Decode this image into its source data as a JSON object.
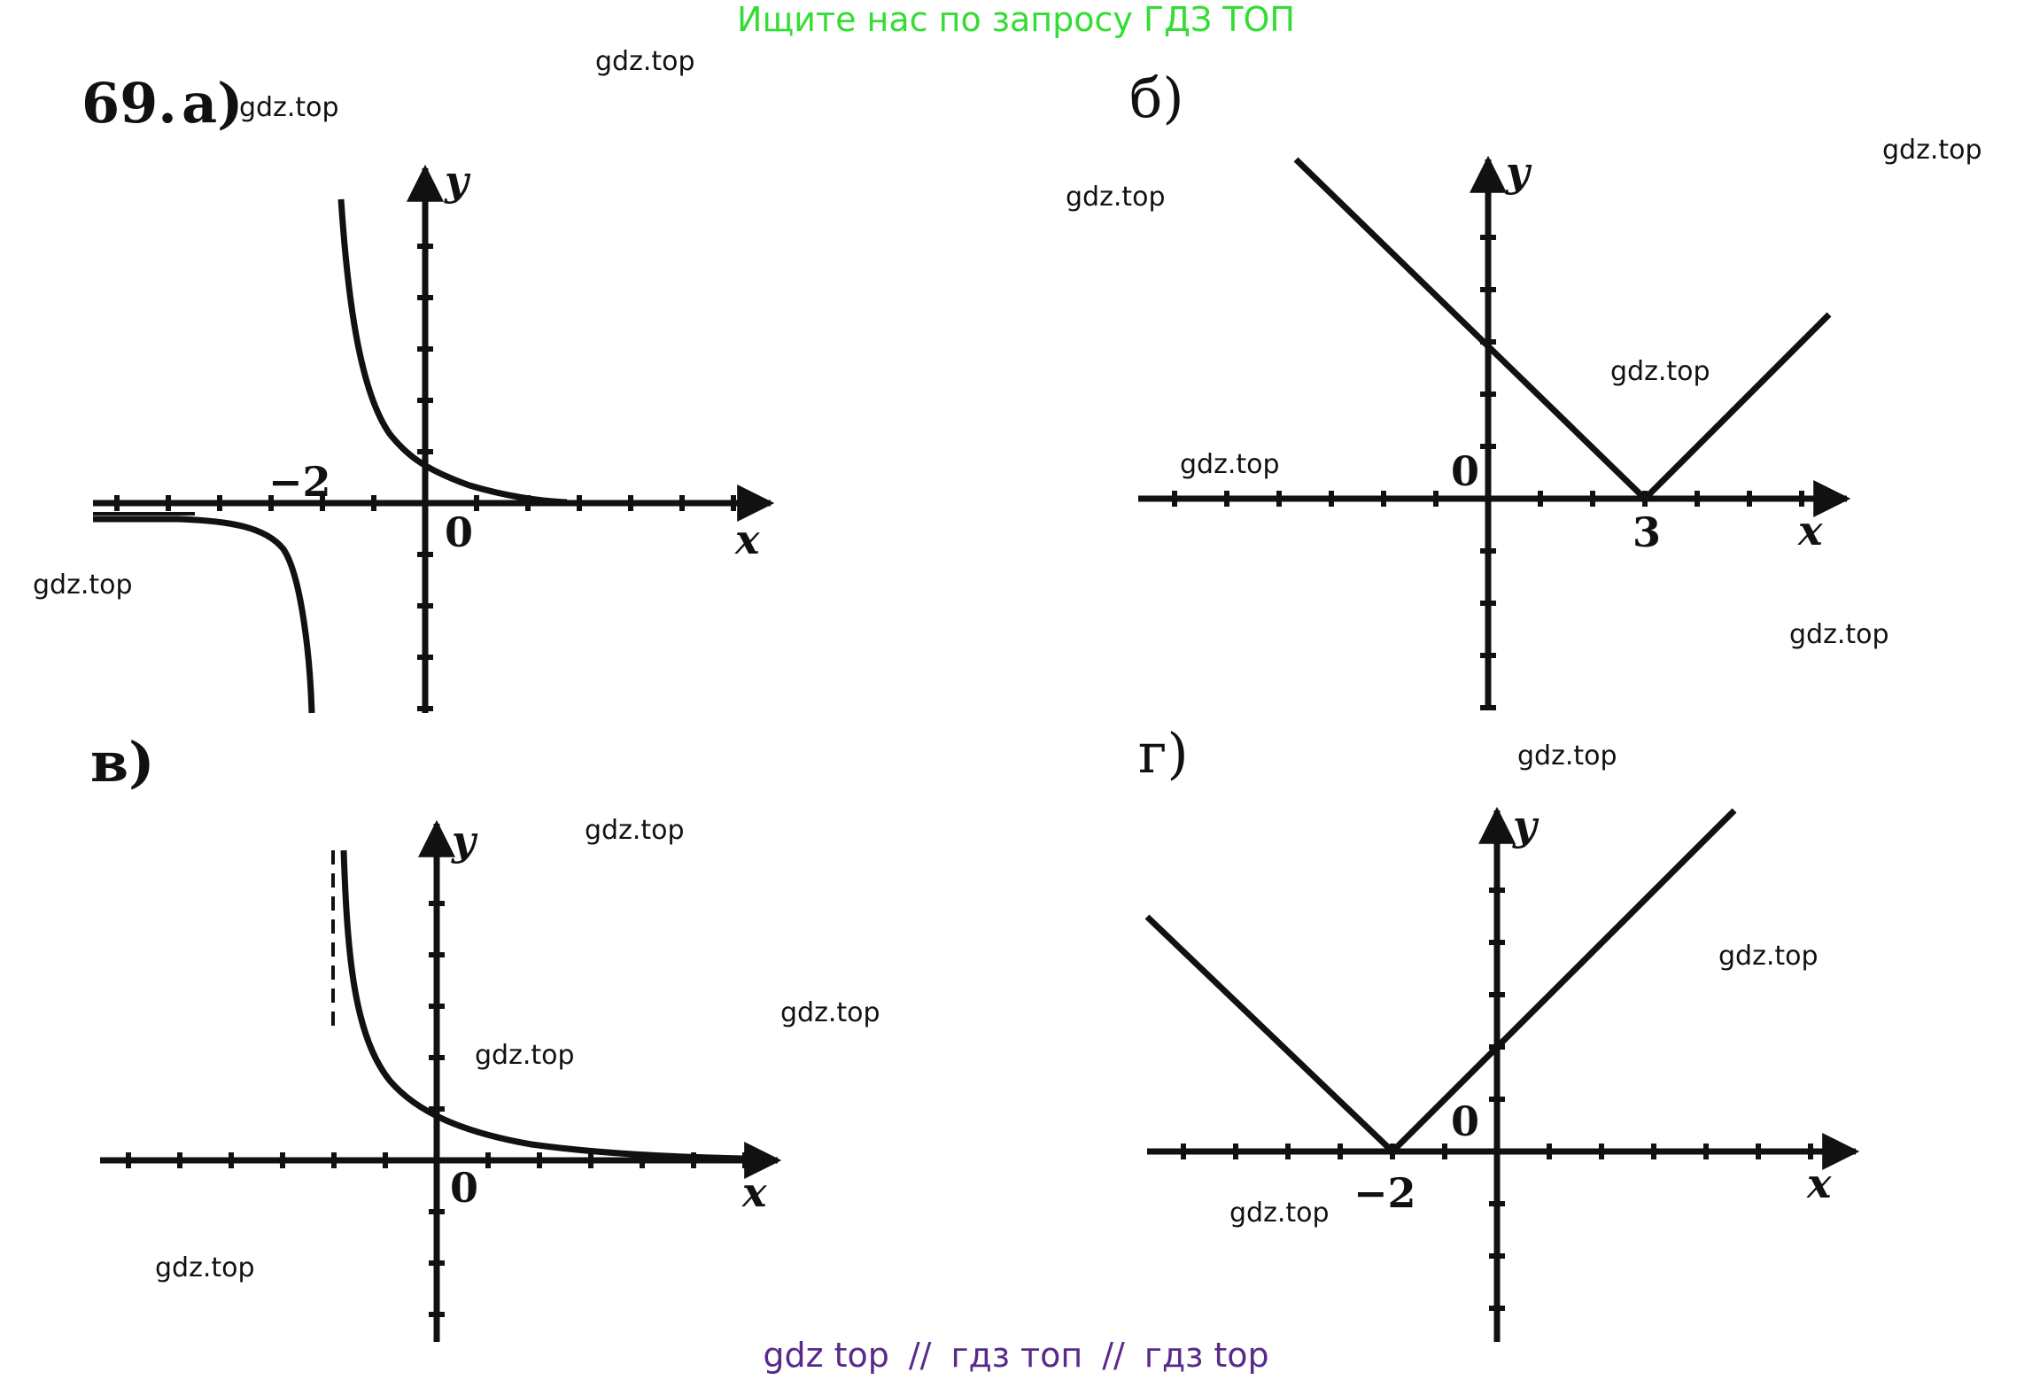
{
  "header": {
    "text": "Ищите нас по запросу ГДЗ ТОП"
  },
  "problem": {
    "number": "69.",
    "parts": [
      "а)",
      "б)",
      "в)",
      "г)"
    ]
  },
  "axes": {
    "x": "x",
    "y": "y",
    "origin": "0"
  },
  "values": {
    "a": "−2",
    "b": "3",
    "d": "−2"
  },
  "watermark": "gdz.top",
  "footer": {
    "items": [
      "gdz top",
      "гдз топ",
      "гдз top"
    ],
    "separator": "//"
  },
  "colors": {
    "header": "#33dd33",
    "footer": "#5a2a8a",
    "ink": "#111111"
  }
}
